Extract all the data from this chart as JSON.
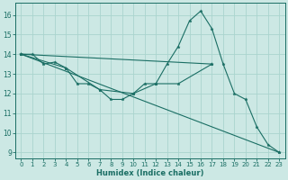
{
  "xlabel": "Humidex (Indice chaleur)",
  "background_color": "#cce8e4",
  "grid_color": "#aad4ce",
  "line_color": "#1a6e64",
  "xlim": [
    -0.5,
    23.5
  ],
  "ylim": [
    8.7,
    16.6
  ],
  "yticks": [
    9,
    10,
    11,
    12,
    13,
    14,
    15,
    16
  ],
  "xticks": [
    0,
    1,
    2,
    3,
    4,
    5,
    6,
    7,
    8,
    9,
    10,
    11,
    12,
    13,
    14,
    15,
    16,
    17,
    18,
    19,
    20,
    21,
    22,
    23
  ],
  "line1_x": [
    0,
    1,
    2,
    3,
    4,
    5,
    6,
    7,
    8,
    9,
    10,
    11,
    12,
    13,
    14,
    15,
    16,
    17,
    18,
    19,
    20,
    21,
    22,
    23
  ],
  "line1_y": [
    14,
    14,
    13.5,
    13.6,
    13.3,
    12.5,
    12.5,
    12.2,
    11.7,
    11.7,
    12.0,
    12.5,
    12.5,
    13.5,
    14.4,
    15.7,
    16.2,
    15.3,
    13.5,
    12.0,
    11.7,
    10.3,
    9.4,
    9.0
  ],
  "line2_x": [
    0,
    17
  ],
  "line2_y": [
    14,
    13.5
  ],
  "line3_x": [
    0,
    4,
    7,
    10,
    12,
    14,
    17
  ],
  "line3_y": [
    14,
    13.3,
    12.2,
    12.0,
    12.5,
    12.5,
    13.5
  ],
  "line4_x": [
    0,
    23
  ],
  "line4_y": [
    14,
    9.0
  ]
}
